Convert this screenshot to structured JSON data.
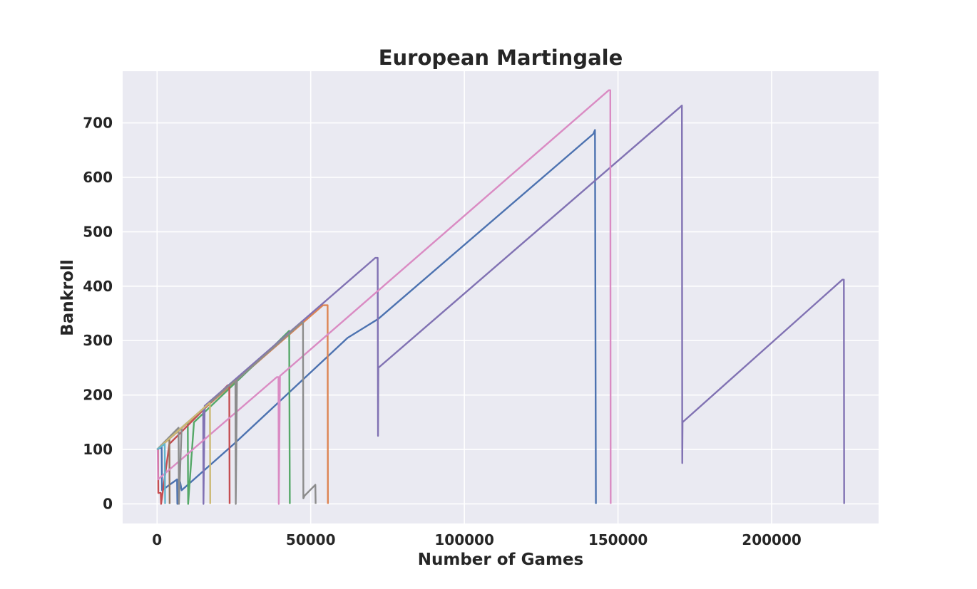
{
  "chart_data": {
    "type": "line",
    "title": "European Martingale",
    "xlabel": "Number of Games",
    "ylabel": "Bankroll",
    "xlim": [
      -11200,
      234800
    ],
    "ylim": [
      -36,
      795
    ],
    "xticks": [
      0,
      50000,
      100000,
      150000,
      200000
    ],
    "yticks": [
      0,
      100,
      200,
      300,
      400,
      500,
      600,
      700
    ],
    "xtick_labels": [
      "0",
      "50000",
      "100000",
      "150000",
      "200000"
    ],
    "ytick_labels": [
      "0",
      "100",
      "200",
      "300",
      "400",
      "500",
      "600",
      "700"
    ],
    "grid": true,
    "legend": "none",
    "background": "#eaeaf2",
    "series": [
      {
        "color": "#4c72b0",
        "points": [
          [
            0,
            100
          ],
          [
            1500,
            104
          ],
          [
            1600,
            25
          ],
          [
            6500,
            45
          ],
          [
            6600,
            0
          ],
          [
            7500,
            40
          ],
          [
            8000,
            25
          ],
          [
            25000,
            110
          ],
          [
            62000,
            305
          ],
          [
            72000,
            340
          ],
          [
            142000,
            680
          ],
          [
            142500,
            687
          ],
          [
            142800,
            0
          ]
        ]
      },
      {
        "color": "#dd8452",
        "points": [
          [
            0,
            100
          ],
          [
            54000,
            365
          ],
          [
            55500,
            365
          ],
          [
            55600,
            0
          ]
        ]
      },
      {
        "color": "#55a868",
        "points": [
          [
            0,
            100
          ],
          [
            10000,
            150
          ],
          [
            10100,
            0
          ],
          [
            12000,
            150
          ],
          [
            38000,
            290
          ],
          [
            43000,
            318
          ],
          [
            43200,
            0
          ]
        ]
      },
      {
        "color": "#c44e52",
        "points": [
          [
            0,
            100
          ],
          [
            300,
            100
          ],
          [
            400,
            20
          ],
          [
            1200,
            20
          ],
          [
            1300,
            0
          ],
          [
            4000,
            110
          ],
          [
            23000,
            218
          ],
          [
            23500,
            218
          ],
          [
            23600,
            0
          ]
        ]
      },
      {
        "color": "#8172b3",
        "points": [
          [
            0,
            100
          ],
          [
            15000,
            175
          ],
          [
            15100,
            0
          ],
          [
            15500,
            180
          ],
          [
            71000,
            452
          ],
          [
            71800,
            452
          ],
          [
            71900,
            125
          ],
          [
            72000,
            250
          ],
          [
            170000,
            728
          ],
          [
            170800,
            732
          ],
          [
            170900,
            75
          ],
          [
            171000,
            150
          ],
          [
            223000,
            412
          ],
          [
            223500,
            412
          ],
          [
            223600,
            0
          ]
        ]
      },
      {
        "color": "#937860",
        "points": [
          [
            0,
            100
          ],
          [
            4000,
            120
          ],
          [
            4100,
            0
          ]
        ]
      },
      {
        "color": "#da8bc3",
        "points": [
          [
            0,
            100
          ],
          [
            200,
            100
          ],
          [
            300,
            45
          ],
          [
            39000,
            233
          ],
          [
            39500,
            233
          ],
          [
            39600,
            0
          ],
          [
            40000,
            235
          ],
          [
            147000,
            760
          ],
          [
            147500,
            760
          ],
          [
            147600,
            0
          ]
        ]
      },
      {
        "color": "#8c8c8c",
        "points": [
          [
            0,
            100
          ],
          [
            7000,
            140
          ],
          [
            7100,
            0
          ],
          [
            8000,
            140
          ],
          [
            25000,
            225
          ],
          [
            25500,
            225
          ],
          [
            25600,
            0
          ],
          [
            26000,
            228
          ],
          [
            47000,
            333
          ],
          [
            47500,
            333
          ],
          [
            47600,
            10
          ],
          [
            48000,
            15
          ],
          [
            51500,
            35
          ],
          [
            51600,
            0
          ]
        ]
      },
      {
        "color": "#ccb974",
        "points": [
          [
            0,
            100
          ],
          [
            17000,
            185
          ],
          [
            17200,
            185
          ],
          [
            17300,
            0
          ]
        ]
      },
      {
        "color": "#64b5cd",
        "points": [
          [
            0,
            100
          ],
          [
            2500,
            110
          ],
          [
            2600,
            0
          ]
        ]
      }
    ]
  }
}
